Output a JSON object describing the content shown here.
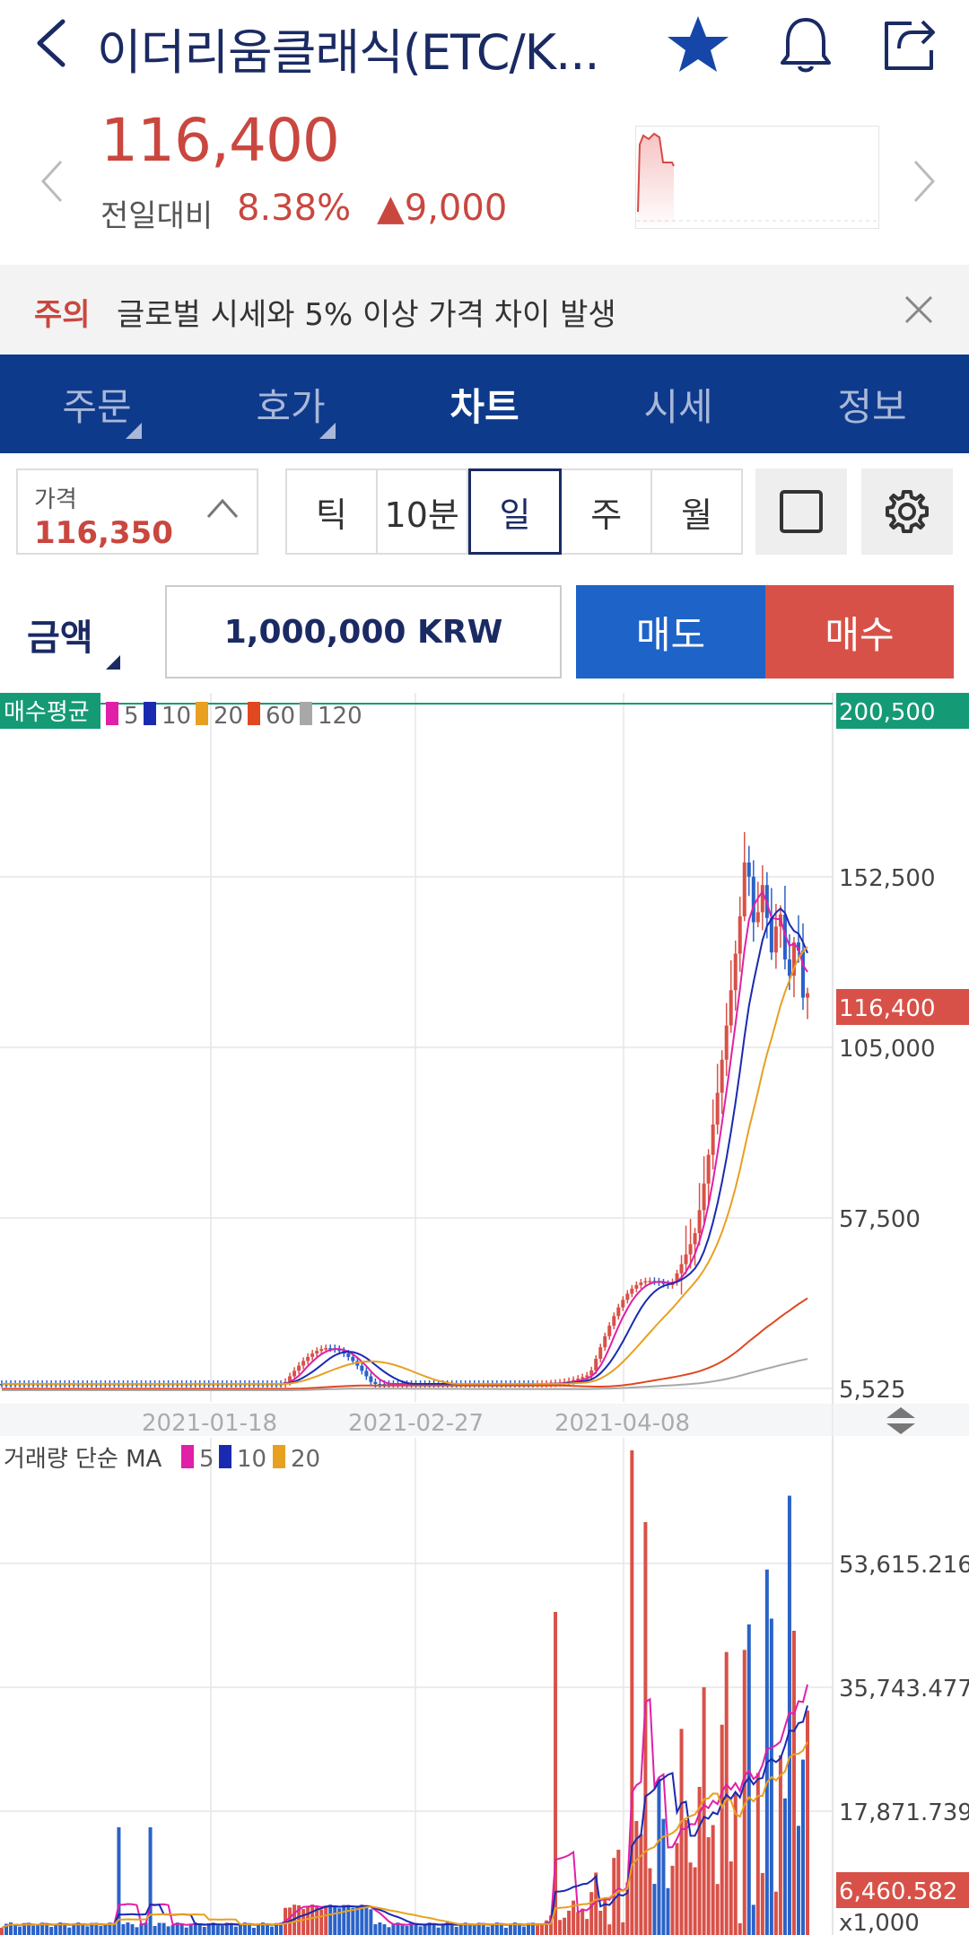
{
  "header": {
    "title": "이더리움클래식(ETC/K...",
    "back_icon": "chevron-left-icon",
    "favorite_icon": "star-icon",
    "alarm_icon": "bell-icon",
    "share_icon": "share-icon"
  },
  "summary": {
    "price": "116,400",
    "change_label": "전일대비",
    "change_pct": "8.38%",
    "change_amount": "▲9,000",
    "colors": {
      "up": "#c9473f"
    }
  },
  "notice": {
    "tag": "주의",
    "text": "글로벌 시세와 5% 이상 가격 차이 발생"
  },
  "tabs": [
    {
      "label": "주문",
      "active": false
    },
    {
      "label": "호가",
      "active": false
    },
    {
      "label": "차트",
      "active": true
    },
    {
      "label": "시세",
      "active": false
    },
    {
      "label": "정보",
      "active": false
    }
  ],
  "controls": {
    "price_label": "가격",
    "price_value": "116,350",
    "periods": [
      "틱",
      "10분",
      "일",
      "주",
      "월"
    ],
    "selected_period": "일",
    "square_icon": "square-icon",
    "settings_icon": "gear-icon"
  },
  "order": {
    "amount_label": "금액",
    "amount_value": "1,000,000 KRW",
    "sell_label": "매도",
    "buy_label": "매수"
  },
  "chart_data": [
    {
      "type": "candlestick",
      "legend_label": "매수평균",
      "legend": [
        "5",
        "10",
        "20",
        "60",
        "120"
      ],
      "legend_colors": [
        "#e020a8",
        "#1a2ab0",
        "#e8a020",
        "#e04820",
        "#a8a8a8"
      ],
      "y_ticks": [
        "200,500",
        "152,500",
        "105,000",
        "57,500",
        "5,525"
      ],
      "y_tick_values": [
        200500,
        152500,
        105000,
        57500,
        5525
      ],
      "ylim": [
        5525,
        200500
      ],
      "current_price_label": "116,400",
      "current_price": 116400,
      "buy_avg_label": "200,500",
      "x_ticks": [
        "2021-01-18",
        "2021-02-27",
        "2021-04-08"
      ]
    },
    {
      "type": "bar",
      "legend_label": "거래량 단순 MA",
      "legend": [
        "5",
        "10",
        "20"
      ],
      "legend_colors": [
        "#e020a8",
        "#1a2ab0",
        "#e8a020"
      ],
      "y_ticks": [
        "53,615.216",
        "35,743.477",
        "17,871.739"
      ],
      "y_tick_values": [
        53615.216,
        35743.477,
        17871.739
      ],
      "current_volume_label": "6,460.582",
      "unit_label": "x1,000"
    }
  ]
}
